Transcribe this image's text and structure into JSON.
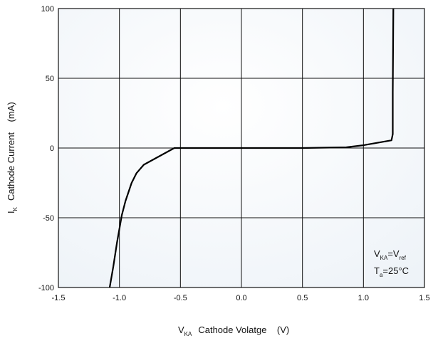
{
  "chart_data": {
    "type": "line",
    "xlabel": {
      "main": "V",
      "sub": "KA",
      "rest": "Cathode Volatge    (V)"
    },
    "ylabel": {
      "main": "I",
      "sub": "K",
      "rest": "Cathode Current    (mA)"
    },
    "xlim": [
      -1.5,
      1.5
    ],
    "ylim": [
      -100,
      100
    ],
    "xticks": [
      -1.5,
      -1.0,
      -0.5,
      0.0,
      0.5,
      1.0,
      1.5
    ],
    "xtick_labels": [
      "-1.5",
      "-1.0",
      "-0.5",
      "0.0",
      "0.5",
      "1.0",
      "1.5"
    ],
    "yticks": [
      -100,
      -50,
      0,
      50,
      100
    ],
    "ytick_labels": [
      "-100",
      "-50",
      "0",
      "50",
      "100"
    ],
    "grid": true,
    "series": [
      {
        "x": [
          -1.08,
          -1.05,
          -1.02,
          -0.98,
          -0.95,
          -0.9,
          -0.86,
          -0.8,
          -0.55,
          0.0,
          0.5,
          0.86,
          1.0,
          1.23,
          1.24,
          1.24,
          1.245
        ],
        "y": [
          -100,
          -85,
          -68,
          -48,
          -38,
          -25,
          -18,
          -12,
          0,
          0,
          0,
          0.5,
          2,
          5.5,
          10,
          40,
          100
        ]
      }
    ],
    "annotations": [
      {
        "parts": [
          {
            "t": "V"
          },
          {
            "t": "KA",
            "sub": true
          },
          {
            "t": "=V"
          },
          {
            "t": "ref",
            "sub": true
          }
        ]
      },
      {
        "parts": [
          {
            "t": "T"
          },
          {
            "t": "a",
            "sub": true
          },
          {
            "t": "=25°C"
          }
        ]
      }
    ]
  },
  "colors": {
    "background": "#f3f7fb",
    "grid": "#111111",
    "curve": "#000000"
  }
}
